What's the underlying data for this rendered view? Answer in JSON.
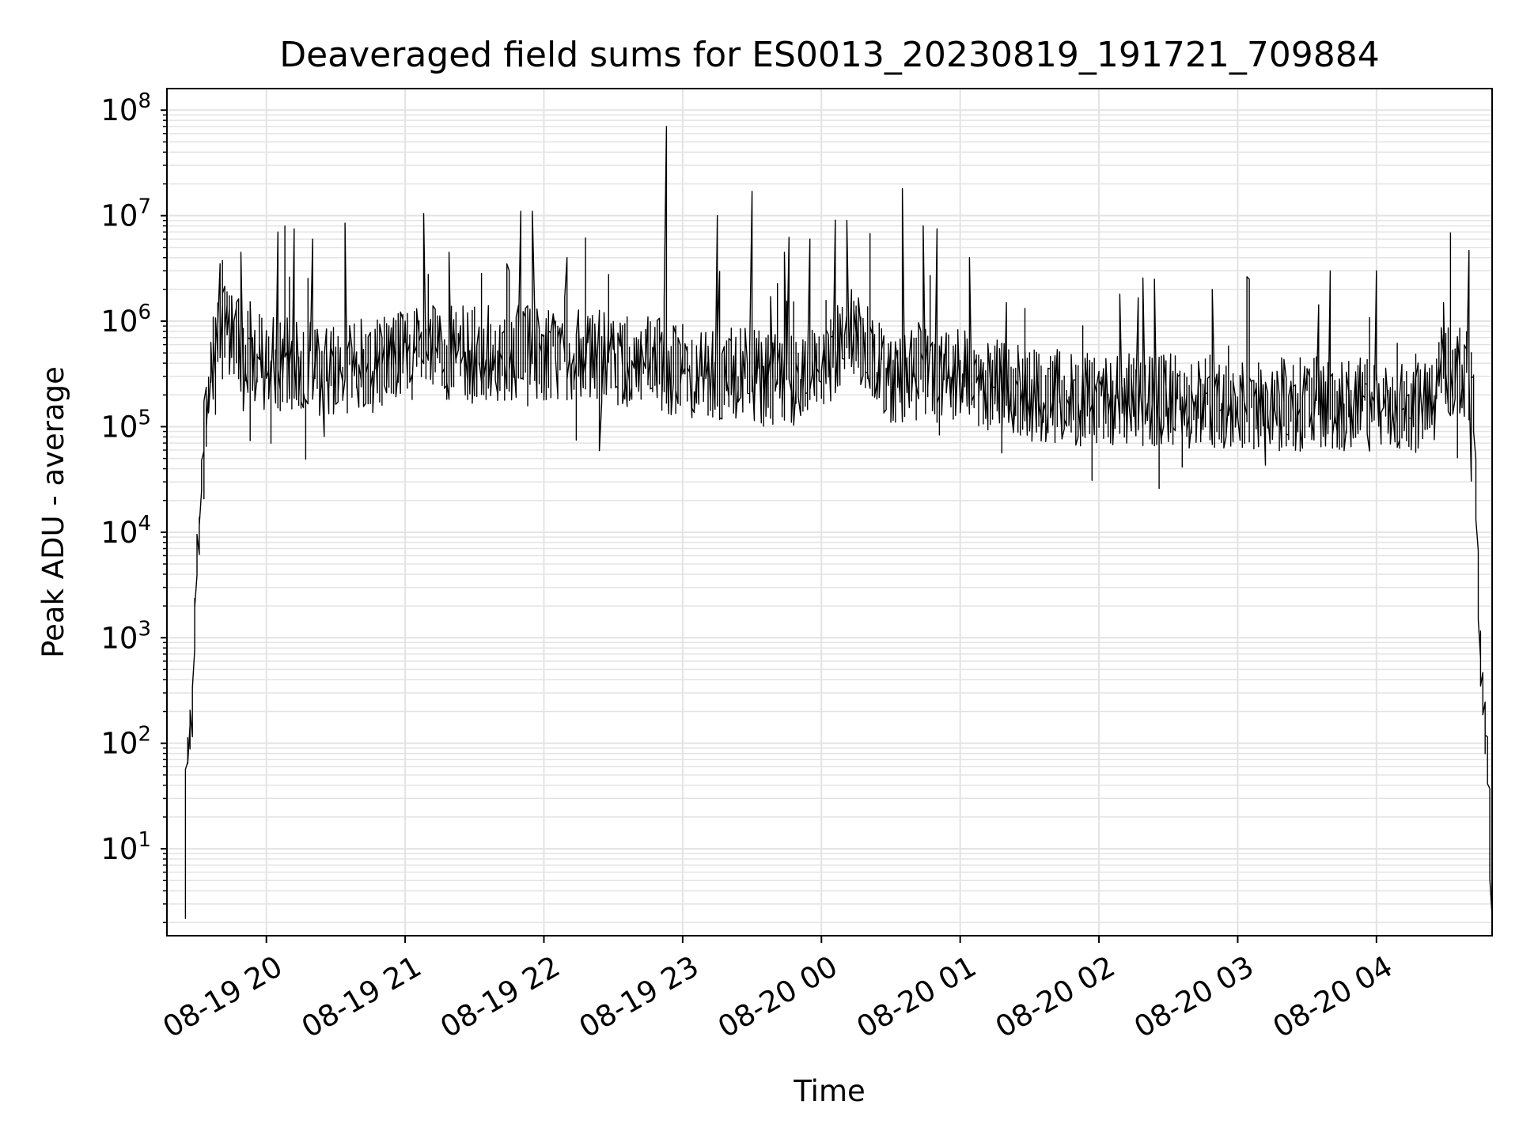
{
  "chart_data": {
    "type": "line",
    "title": "Deaveraged field sums for ES0013_20230819_191721_709884",
    "xlabel": "Time",
    "ylabel": "Peak ADU - average",
    "yscale": "log",
    "ylim": [
      1.5,
      160000000
    ],
    "xlim": [
      "2023-08-19 19:17",
      "2023-08-20 04:50"
    ],
    "grid": true,
    "line_color": "#000000",
    "x_ticks": [
      {
        "label": "08-19 20",
        "t": "2023-08-19 20:00"
      },
      {
        "label": "08-19 21",
        "t": "2023-08-19 21:00"
      },
      {
        "label": "08-19 22",
        "t": "2023-08-19 22:00"
      },
      {
        "label": "08-19 23",
        "t": "2023-08-19 23:00"
      },
      {
        "label": "08-20 00",
        "t": "2023-08-20 00:00"
      },
      {
        "label": "08-20 01",
        "t": "2023-08-20 01:00"
      },
      {
        "label": "08-20 02",
        "t": "2023-08-20 02:00"
      },
      {
        "label": "08-20 03",
        "t": "2023-08-20 03:00"
      },
      {
        "label": "08-20 04",
        "t": "2023-08-20 04:00"
      }
    ],
    "y_ticks": [
      {
        "base": "10",
        "exp": "1",
        "value": 10
      },
      {
        "base": "10",
        "exp": "2",
        "value": 100
      },
      {
        "base": "10",
        "exp": "3",
        "value": 1000
      },
      {
        "base": "10",
        "exp": "4",
        "value": 10000
      },
      {
        "base": "10",
        "exp": "5",
        "value": 100000
      },
      {
        "base": "10",
        "exp": "6",
        "value": 1000000
      },
      {
        "base": "10",
        "exp": "7",
        "value": 10000000
      },
      {
        "base": "10",
        "exp": "8",
        "value": 100000000
      }
    ],
    "series_baseline": [
      [
        "2023-08-19 19:25",
        2
      ],
      [
        "2023-08-19 19:26",
        60
      ],
      [
        "2023-08-19 19:28",
        150
      ],
      [
        "2023-08-19 19:30",
        3000
      ],
      [
        "2023-08-19 19:32",
        20000
      ],
      [
        "2023-08-19 19:34",
        100000
      ],
      [
        "2023-08-19 19:37",
        400000
      ],
      [
        "2023-08-19 19:40",
        800000
      ],
      [
        "2023-08-19 19:45",
        800000
      ],
      [
        "2023-08-19 19:50",
        500000
      ],
      [
        "2023-08-19 20:00",
        400000
      ],
      [
        "2023-08-19 20:30",
        350000
      ],
      [
        "2023-08-19 21:00",
        500000
      ],
      [
        "2023-08-19 21:30",
        500000
      ],
      [
        "2023-08-19 22:00",
        500000
      ],
      [
        "2023-08-19 22:30",
        450000
      ],
      [
        "2023-08-19 23:00",
        350000
      ],
      [
        "2023-08-19 23:30",
        300000
      ],
      [
        "2023-08-19 23:50",
        250000
      ],
      [
        "2023-08-20 00:15",
        800000
      ],
      [
        "2023-08-20 00:30",
        300000
      ],
      [
        "2023-08-20 01:00",
        300000
      ],
      [
        "2023-08-20 01:30",
        200000
      ],
      [
        "2023-08-20 02:00",
        180000
      ],
      [
        "2023-08-20 03:00",
        170000
      ],
      [
        "2023-08-20 04:00",
        160000
      ],
      [
        "2023-08-20 04:25",
        150000
      ],
      [
        "2023-08-20 04:30",
        350000
      ],
      [
        "2023-08-20 04:40",
        350000
      ],
      [
        "2023-08-20 04:43",
        100000
      ],
      [
        "2023-08-20 04:45",
        1000
      ],
      [
        "2023-08-20 04:47",
        200
      ],
      [
        "2023-08-20 04:49",
        40
      ],
      [
        "2023-08-20 04:50",
        3
      ]
    ],
    "series_spikes": [
      [
        "2023-08-19 19:40",
        3500000
      ],
      [
        "2023-08-19 19:50",
        4500000
      ],
      [
        "2023-08-19 20:05",
        7000000
      ],
      [
        "2023-08-19 20:12",
        7500000
      ],
      [
        "2023-08-19 20:20",
        6000000
      ],
      [
        "2023-08-19 20:35",
        8500000
      ],
      [
        "2023-08-19 21:20",
        4500000
      ],
      [
        "2023-08-19 21:45",
        3000000
      ],
      [
        "2023-08-19 21:50",
        11000000
      ],
      [
        "2023-08-19 21:56",
        11000000
      ],
      [
        "2023-08-19 22:10",
        4000000
      ],
      [
        "2023-08-19 22:53",
        70000000
      ],
      [
        "2023-08-19 23:15",
        10000000
      ],
      [
        "2023-08-19 23:30",
        17000000
      ],
      [
        "2023-08-19 23:45",
        4500000
      ],
      [
        "2023-08-19 23:55",
        6000000
      ],
      [
        "2023-08-20 00:12",
        9000000
      ],
      [
        "2023-08-20 00:36",
        18000000
      ],
      [
        "2023-08-20 00:45",
        8000000
      ],
      [
        "2023-08-20 00:50",
        7500000
      ],
      [
        "2023-08-20 01:05",
        4000000
      ],
      [
        "2023-08-20 01:20",
        1500000
      ],
      [
        "2023-08-20 02:10",
        1800000
      ],
      [
        "2023-08-20 02:25",
        2500000
      ],
      [
        "2023-08-20 02:50",
        2000000
      ],
      [
        "2023-08-20 03:05",
        2500000
      ],
      [
        "2023-08-20 03:40",
        3000000
      ],
      [
        "2023-08-20 04:00",
        3000000
      ],
      [
        "2023-08-20 04:30",
        1500000
      ]
    ]
  }
}
